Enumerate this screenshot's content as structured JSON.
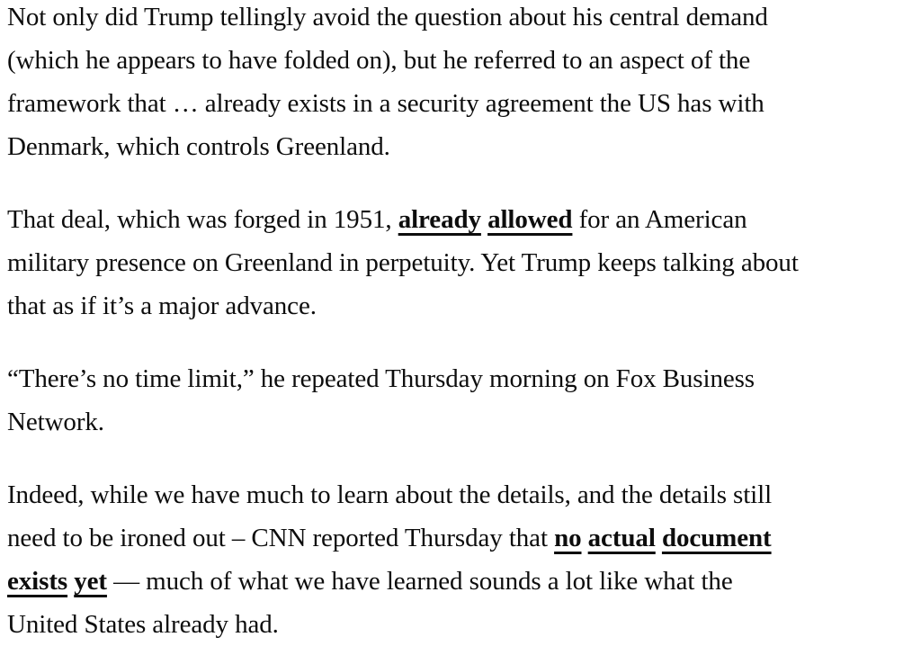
{
  "page": {
    "background": "#ffffff",
    "text_color": "#0d0d0d",
    "link_color": "#0d0d0d"
  },
  "article": {
    "paragraphs": [
      {
        "lines": [
          [
            {
              "t": "Not only did Trump tellingly avoid the question about his central demand"
            }
          ],
          [
            {
              "t": "(which he appears to have folded on), but he referred to an aspect of the"
            }
          ],
          [
            {
              "t": "framework that … already exists in a security agreement the US has with"
            }
          ],
          [
            {
              "t": "Denmark, which controls Greenland."
            }
          ]
        ]
      },
      {
        "lines": [
          [
            {
              "t": "That deal, which was forged in 1951, "
            },
            {
              "t": "already allowed",
              "link": true
            },
            {
              "t": " for an American"
            }
          ],
          [
            {
              "t": "military presence on Greenland in perpetuity. Yet Trump keeps talking about"
            }
          ],
          [
            {
              "t": "that as if it’s a major advance."
            }
          ]
        ]
      },
      {
        "lines": [
          [
            {
              "t": "“There’s no time limit,” he repeated Thursday morning on Fox Business"
            }
          ],
          [
            {
              "t": "Network."
            }
          ]
        ]
      },
      {
        "lines": [
          [
            {
              "t": "Indeed, while we have much to learn about the details, and the details still"
            }
          ],
          [
            {
              "t": "need to be ironed out – CNN reported Thursday that "
            },
            {
              "t": "no actual document",
              "link": true
            }
          ],
          [
            {
              "t": "exists yet",
              "link": true
            },
            {
              "t": " — much of what we have learned sounds a lot like what the"
            }
          ],
          [
            {
              "t": "United States already had."
            }
          ]
        ]
      }
    ]
  }
}
